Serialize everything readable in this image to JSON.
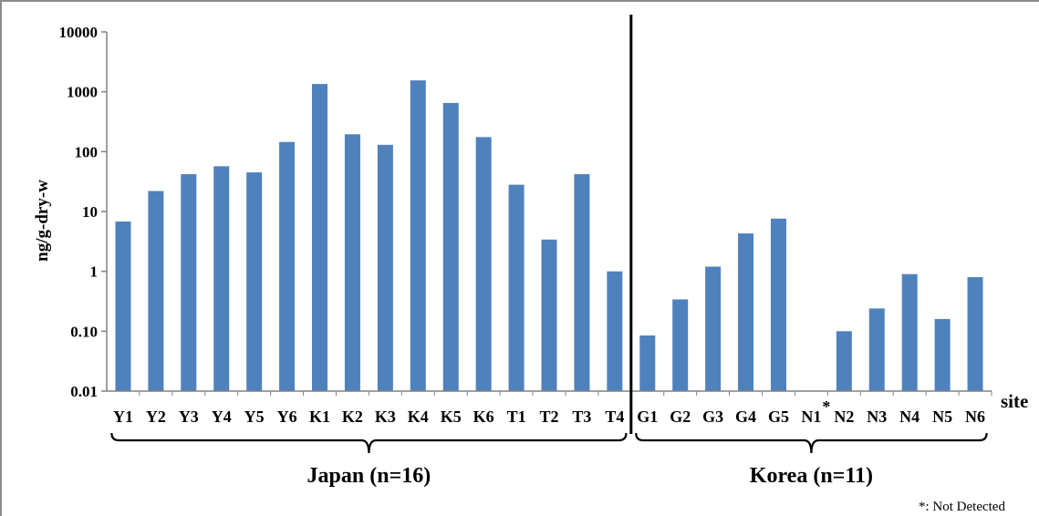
{
  "chart_data": {
    "type": "bar",
    "ylabel": "ng/g-dry-w",
    "xlabel": "site",
    "yscale": "log",
    "ylim": [
      0.01,
      10000
    ],
    "yticks": [
      "0.01",
      "0.10",
      "1",
      "10",
      "100",
      "1000",
      "10000"
    ],
    "grid": false,
    "bar_color": "#4f81bd",
    "categories": [
      "Y1",
      "Y2",
      "Y3",
      "Y4",
      "Y5",
      "Y6",
      "K1",
      "K2",
      "K3",
      "K4",
      "K5",
      "K6",
      "T1",
      "T2",
      "T3",
      "T4",
      "G1",
      "G2",
      "G3",
      "G4",
      "G5",
      "N1",
      "N2",
      "N3",
      "N4",
      "N5",
      "N6"
    ],
    "values": [
      6.8,
      22,
      42,
      57,
      45,
      145,
      1350,
      195,
      130,
      1550,
      650,
      175,
      28,
      3.4,
      42,
      1.0,
      0.085,
      0.34,
      1.2,
      4.3,
      7.6,
      null,
      0.1,
      0.24,
      0.9,
      0.16,
      0.8
    ],
    "not_detected_marker": {
      "category": "N1",
      "symbol": "*"
    },
    "groups": [
      {
        "label": "Japan (n=16)",
        "categories": [
          "Y1",
          "Y2",
          "Y3",
          "Y4",
          "Y5",
          "Y6",
          "K1",
          "K2",
          "K3",
          "K4",
          "K5",
          "K6",
          "T1",
          "T2",
          "T3",
          "T4"
        ]
      },
      {
        "label": "Korea (n=11)",
        "categories": [
          "G1",
          "G2",
          "G3",
          "G4",
          "G5",
          "N1",
          "N2",
          "N3",
          "N4",
          "N5",
          "N6"
        ]
      }
    ],
    "footnote": "*: Not Detected"
  }
}
